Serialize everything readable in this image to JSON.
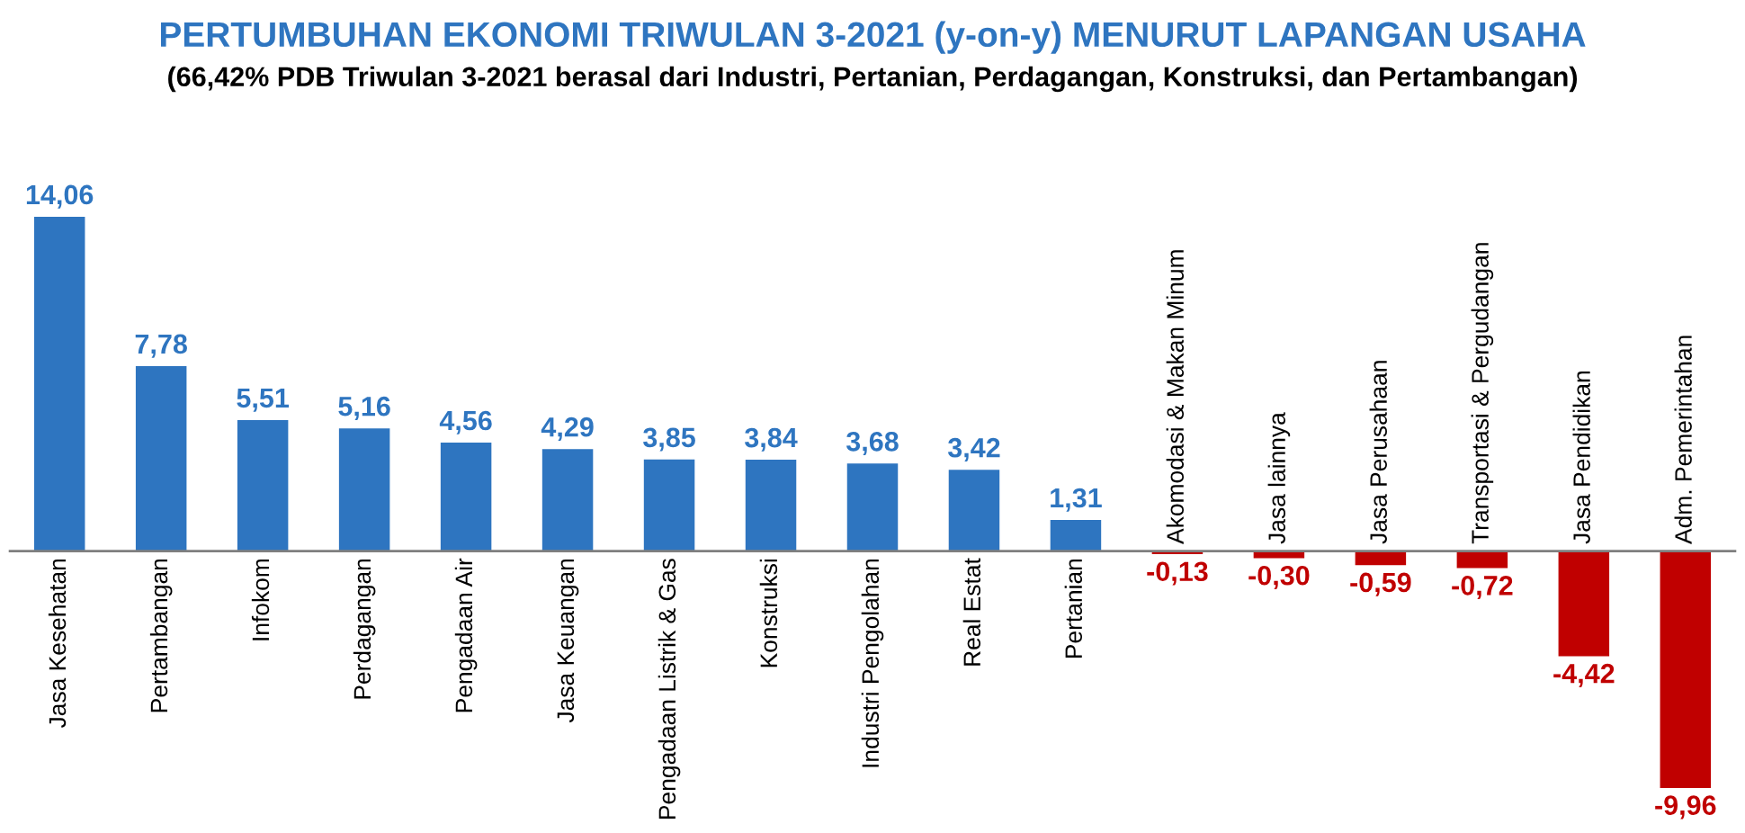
{
  "chart_data": {
    "type": "bar",
    "title": "PERTUMBUHAN EKONOMI TRIWULAN 3-2021 (y-on-y) MENURUT LAPANGAN USAHA",
    "subtitle": "(66,42% PDB Triwulan 3-2021 berasal dari Industri, Pertanian, Perdagangan, Konstruksi, dan Pertambangan)",
    "categories": [
      "Jasa Kesehatan",
      "Pertambangan",
      "Infokom",
      "Perdagangan",
      "Pengadaan Air",
      "Jasa Keuangan",
      "Pengadaan Listrik & Gas",
      "Konstruksi",
      "Industri Pengolahan",
      "Real Estat",
      "Pertanian",
      "Akomodasi & Makan Minum",
      "Jasa lainnya",
      "Jasa Perusahaan",
      "Transportasi & Pergudangan",
      "Jasa Pendidikan",
      "Adm. Pemerintahan"
    ],
    "values": [
      14.06,
      7.78,
      5.51,
      5.16,
      4.56,
      4.29,
      3.85,
      3.84,
      3.68,
      3.42,
      1.31,
      -0.13,
      -0.3,
      -0.59,
      -0.72,
      -4.42,
      -9.96
    ],
    "value_labels": [
      "14,06",
      "7,78",
      "5,51",
      "5,16",
      "4,56",
      "4,29",
      "3,85",
      "3,84",
      "3,68",
      "3,42",
      "1,31",
      "-0,13",
      "-0,30",
      "-0,59",
      "-0,72",
      "-4,42",
      "-9,96"
    ],
    "colors": [
      "#2e75c0",
      "#2e75c0",
      "#2e75c0",
      "#2e75c0",
      "#2e75c0",
      "#2e75c0",
      "#2e75c0",
      "#2e75c0",
      "#2e75c0",
      "#2e75c0",
      "#2e75c0",
      "#c00000",
      "#c00000",
      "#c00000",
      "#c00000",
      "#c00000",
      "#c00000"
    ]
  }
}
